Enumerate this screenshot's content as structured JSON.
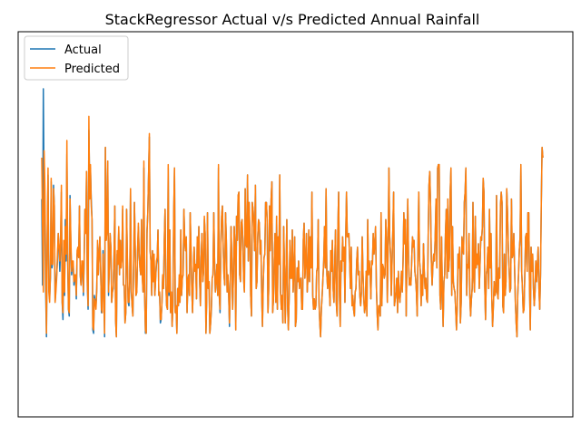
{
  "chart_data": {
    "type": "line",
    "title": "StackRegressor Actual v/s Predicted Annual Rainfall",
    "xlabel": "",
    "ylabel": "",
    "xticks": [],
    "yticks": [],
    "grid": false,
    "legend_position": "top-left",
    "colors": {
      "Actual": "#1f77b4",
      "Predicted": "#ff7f0e"
    },
    "ylim": [
      0,
      100
    ],
    "series": [
      {
        "name": "Actual",
        "values": [
          58,
          33,
          90,
          58,
          54,
          31,
          18,
          48,
          65,
          33,
          29,
          35,
          63,
          38,
          40,
          62,
          56,
          28,
          33,
          36,
          40,
          48,
          44,
          37,
          45,
          60,
          28,
          23,
          44,
          30,
          52,
          40,
          71,
          41,
          26,
          24,
          59,
          45,
          36,
          39,
          39,
          33,
          36,
          35,
          29,
          42,
          43,
          41,
          56,
          36,
          33,
          39,
          39,
          30,
          40,
          55,
          49,
          66,
          33,
          26,
          78,
          62,
          67,
          58,
          52,
          20,
          19,
          30,
          28,
          27,
          32,
          44,
          36,
          42,
          47,
          38,
          25,
          25,
          43,
          33,
          18,
          73,
          46,
          49,
          69,
          30,
          39,
          48,
          44,
          28,
          31,
          32,
          42,
          56,
          23,
          18,
          42,
          40,
          49,
          36,
          46,
          38,
          41,
          55,
          33,
          33,
          22,
          25,
          55,
          40,
          28,
          27,
          34,
          61,
          31,
          27,
          24,
          39,
          57,
          44,
          30,
          31,
          43,
          50,
          42,
          38,
          36,
          52,
          36,
          31,
          67,
          30,
          19,
          19,
          49,
          54,
          65,
          76,
          43,
          40,
          30,
          43,
          34,
          41,
          30,
          35,
          39,
          41,
          49,
          30,
          31,
          22,
          23,
          28,
          36,
          32,
          46,
          55,
          33,
          27,
          26,
          67,
          30,
          49,
          25,
          31,
          21,
          27,
          53,
          67,
          25,
          27,
          19,
          32,
          27,
          35,
          28,
          49,
          30,
          35,
          36,
          55,
          46,
          43,
          47,
          25,
          34,
          36,
          30,
          54,
          43,
          32,
          25,
          36,
          44,
          37,
          39,
          29,
          47,
          38,
          50,
          34,
          27,
          41,
          48,
          34,
          37,
          52,
          48,
          19,
          29,
          54,
          32,
          34,
          19,
          22,
          26,
          35,
          36,
          54,
          40,
          31,
          34,
          39,
          30,
          67,
          30,
          25,
          45,
          53,
          56,
          44,
          36,
          33,
          54,
          46,
          31,
          36,
          30,
          21,
          34,
          50,
          40,
          26,
          36,
          50,
          44,
          20,
          53,
          46,
          59,
          60,
          36,
          34,
          51,
          52,
          46,
          35,
          31,
          61,
          45,
          44,
          65,
          40,
          57,
          48,
          30,
          24,
          57,
          55,
          51,
          43,
          62,
          32,
          34,
          47,
          52,
          51,
          42,
          46,
          30,
          21,
          34,
          41,
          42,
          57,
          57,
          52,
          25,
          32,
          56,
          43,
          58,
          63,
          25,
          29,
          40,
          48,
          28,
          53,
          26,
          47,
          39,
          65,
          31,
          26,
          30,
          22,
          50,
          38,
          22,
          36,
          52,
          27,
          20,
          30,
          46,
          35,
          35,
          49,
          31,
          37,
          47,
          21,
          23,
          38,
          34,
          40,
          32,
          34,
          35,
          26,
          26,
          46,
          51,
          35,
          40,
          48,
          31,
          36,
          49,
          34,
          47,
          38,
          60,
          30,
          26,
          29,
          26,
          27,
          37,
          38,
          52,
          28,
          22,
          18,
          26,
          30,
          35,
          40,
          50,
          38,
          61,
          36,
          32,
          37,
          33,
          27,
          43,
          37,
          46,
          32,
          28,
          39,
          49,
          28,
          24,
          49,
          60,
          31,
          21,
          40,
          37,
          47,
          40,
          44,
          28,
          47,
          60,
          47,
          47,
          48,
          40,
          32,
          44,
          27,
          30,
          26,
          24,
          31,
          32,
          40,
          44,
          36,
          37,
          30,
          27,
          31,
          47,
          36,
          29,
          25,
          27,
          37,
          24,
          52,
          36,
          40,
          37,
          29,
          40,
          39,
          48,
          42,
          45,
          50,
          33,
          25,
          20,
          27,
          27,
          24,
          54,
          27,
          39,
          38,
          35,
          36,
          52,
          47,
          28,
          45,
          67,
          47,
          42,
          30,
          40,
          49,
          60,
          27,
          29,
          31,
          35,
          25,
          37,
          30,
          28,
          32,
          37,
          31,
          40,
          54,
          45,
          52,
          24,
          42,
          58,
          40,
          33,
          35,
          33,
          40,
          47,
          44,
          46,
          37,
          35,
          31,
          24,
          43,
          60,
          40,
          37,
          27,
          36,
          30,
          45,
          37,
          32,
          35,
          29,
          28,
          47,
          62,
          66,
          56,
          40,
          33,
          39,
          42,
          40,
          48,
          58,
          38,
          67,
          68,
          68,
          30,
          26,
          47,
          32,
          21,
          34,
          36,
          48,
          55,
          35,
          58,
          37,
          41,
          60,
          67,
          30,
          50,
          34,
          32,
          31,
          26,
          20,
          27,
          42,
          38,
          44,
          22,
          28,
          47,
          44,
          42,
          57,
          60,
          67,
          30,
          39,
          38,
          48,
          30,
          24,
          29,
          32,
          57,
          35,
          31,
          53,
          38,
          42,
          39,
          45,
          32,
          39,
          47,
          46,
          50,
          64,
          60,
          33,
          23,
          36,
          38,
          44,
          32,
          55,
          38,
          48,
          29,
          21,
          27,
          34,
          30,
          31,
          59,
          31,
          29,
          38,
          35,
          56,
          60,
          57,
          27,
          25,
          42,
          30,
          34,
          61,
          54,
          44,
          38,
          31,
          32,
          58,
          41,
          42,
          48,
          38,
          28,
          22,
          18,
          30,
          36,
          43,
          47,
          68,
          37,
          32,
          25,
          26,
          36,
          47,
          48,
          37,
          54,
          54,
          33,
          20,
          44,
          37,
          42,
          32,
          27,
          31,
          40,
          34,
          39,
          44,
          32,
          26,
          36,
          57,
          73,
          70
        ]
      },
      {
        "name": "Predicted",
        "values": [
          70,
          49,
          31,
          72,
          62,
          38,
          19,
          46,
          67,
          31,
          28,
          36,
          64,
          39,
          39,
          61,
          56,
          28,
          31,
          35,
          42,
          48,
          44,
          40,
          47,
          62,
          28,
          25,
          46,
          31,
          50,
          42,
          75,
          42,
          26,
          25,
          58,
          47,
          37,
          40,
          40,
          34,
          36,
          36,
          30,
          43,
          44,
          41,
          56,
          36,
          33,
          40,
          40,
          31,
          41,
          55,
          48,
          66,
          34,
          27,
          82,
          58,
          68,
          56,
          52,
          21,
          20,
          29,
          28,
          26,
          31,
          46,
          36,
          42,
          47,
          37,
          26,
          25,
          42,
          32,
          19,
          73,
          46,
          49,
          69,
          31,
          38,
          48,
          44,
          28,
          31,
          33,
          41,
          56,
          23,
          18,
          43,
          39,
          50,
          36,
          46,
          38,
          41,
          56,
          33,
          33,
          22,
          25,
          55,
          41,
          28,
          28,
          34,
          61,
          32,
          27,
          24,
          40,
          57,
          43,
          30,
          31,
          43,
          51,
          42,
          38,
          36,
          52,
          35,
          31,
          69,
          30,
          20,
          19,
          48,
          54,
          65,
          77,
          43,
          40,
          30,
          43,
          34,
          42,
          30,
          35,
          40,
          41,
          49,
          30,
          31,
          23,
          23,
          28,
          36,
          32,
          46,
          55,
          34,
          27,
          26,
          68,
          31,
          49,
          25,
          31,
          21,
          28,
          54,
          67,
          25,
          27,
          19,
          32,
          27,
          36,
          28,
          49,
          30,
          35,
          36,
          55,
          46,
          43,
          47,
          25,
          34,
          36,
          30,
          54,
          44,
          32,
          25,
          36,
          44,
          37,
          39,
          29,
          47,
          38,
          50,
          35,
          27,
          41,
          48,
          34,
          37,
          53,
          48,
          19,
          29,
          54,
          32,
          34,
          19,
          22,
          27,
          35,
          36,
          54,
          40,
          31,
          34,
          39,
          30,
          68,
          30,
          26,
          45,
          53,
          56,
          44,
          36,
          33,
          54,
          46,
          31,
          36,
          30,
          22,
          34,
          50,
          40,
          26,
          36,
          50,
          44,
          20,
          53,
          46,
          59,
          60,
          36,
          34,
          51,
          52,
          46,
          35,
          31,
          61,
          45,
          44,
          65,
          40,
          57,
          48,
          30,
          24,
          57,
          55,
          51,
          43,
          62,
          32,
          34,
          47,
          52,
          51,
          42,
          46,
          30,
          21,
          34,
          41,
          42,
          57,
          57,
          52,
          25,
          32,
          56,
          43,
          58,
          63,
          25,
          29,
          40,
          48,
          28,
          53,
          26,
          47,
          39,
          65,
          31,
          26,
          30,
          22,
          50,
          38,
          22,
          36,
          52,
          27,
          20,
          30,
          46,
          35,
          35,
          49,
          31,
          37,
          47,
          21,
          23,
          38,
          34,
          40,
          32,
          34,
          35,
          26,
          26,
          46,
          51,
          35,
          40,
          48,
          31,
          36,
          49,
          34,
          47,
          38,
          60,
          30,
          26,
          29,
          26,
          27,
          37,
          38,
          52,
          28,
          22,
          18,
          26,
          30,
          35,
          40,
          50,
          38,
          61,
          36,
          32,
          37,
          33,
          27,
          43,
          37,
          46,
          32,
          28,
          39,
          49,
          28,
          24,
          49,
          60,
          31,
          21,
          40,
          37,
          47,
          40,
          44,
          28,
          47,
          60,
          47,
          47,
          48,
          40,
          32,
          44,
          27,
          30,
          26,
          24,
          31,
          32,
          40,
          44,
          36,
          37,
          30,
          27,
          31,
          47,
          36,
          29,
          25,
          27,
          37,
          24,
          52,
          36,
          40,
          37,
          29,
          40,
          39,
          48,
          42,
          45,
          50,
          33,
          25,
          20,
          27,
          27,
          24,
          54,
          27,
          39,
          38,
          35,
          36,
          52,
          47,
          28,
          45,
          67,
          47,
          42,
          30,
          40,
          49,
          60,
          27,
          29,
          31,
          35,
          25,
          37,
          30,
          28,
          32,
          37,
          31,
          40,
          54,
          45,
          52,
          24,
          42,
          58,
          40,
          33,
          35,
          33,
          40,
          47,
          44,
          46,
          37,
          35,
          31,
          24,
          43,
          60,
          40,
          37,
          27,
          36,
          30,
          45,
          37,
          32,
          35,
          29,
          28,
          47,
          62,
          66,
          56,
          40,
          33,
          39,
          42,
          40,
          48,
          58,
          38,
          67,
          68,
          68,
          30,
          26,
          47,
          32,
          21,
          34,
          36,
          48,
          55,
          35,
          58,
          37,
          41,
          60,
          67,
          30,
          50,
          34,
          32,
          31,
          26,
          20,
          27,
          42,
          38,
          44,
          22,
          28,
          47,
          44,
          42,
          57,
          60,
          67,
          30,
          39,
          38,
          48,
          30,
          24,
          29,
          32,
          57,
          35,
          31,
          53,
          38,
          42,
          39,
          45,
          32,
          39,
          47,
          46,
          50,
          64,
          60,
          33,
          23,
          36,
          38,
          44,
          32,
          55,
          38,
          48,
          29,
          21,
          27,
          34,
          30,
          31,
          59,
          31,
          29,
          38,
          35,
          56,
          60,
          57,
          27,
          25,
          42,
          30,
          34,
          61,
          54,
          44,
          38,
          31,
          32,
          58,
          41,
          42,
          48,
          38,
          28,
          22,
          18,
          30,
          36,
          43,
          47,
          68,
          37,
          32,
          25,
          26,
          36,
          47,
          48,
          37,
          54,
          54,
          33,
          20,
          44,
          37,
          42,
          32,
          27,
          31,
          40,
          34,
          39,
          44,
          32,
          26,
          36,
          57,
          73,
          70
        ]
      }
    ]
  }
}
